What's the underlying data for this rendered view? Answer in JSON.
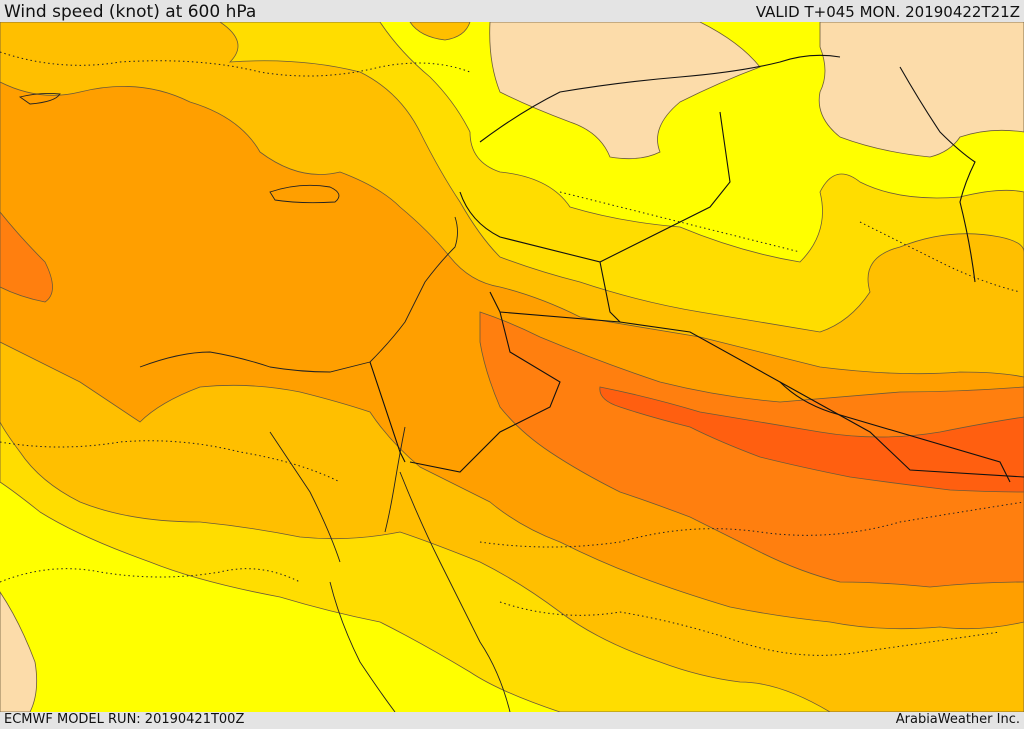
{
  "header": {
    "title": "Wind speed (knot) at 600 hPa",
    "valid": "VALID T+045 MON. 20190422T21Z"
  },
  "footer": {
    "model_run": "ECMWF MODEL RUN: 20190421T00Z",
    "credit": "ArabiaWeather Inc."
  },
  "map": {
    "variable": "wind speed",
    "level_hpa": 600,
    "units": "knot",
    "colors": {
      "lowest": "#fcdcaa",
      "band_1": "#ffff00",
      "band_2": "#ffdd00",
      "band_3": "#ffbf00",
      "band_4": "#ff9f00",
      "band_5": "#ff7f0f",
      "band_6": "#ff5f10"
    }
  }
}
